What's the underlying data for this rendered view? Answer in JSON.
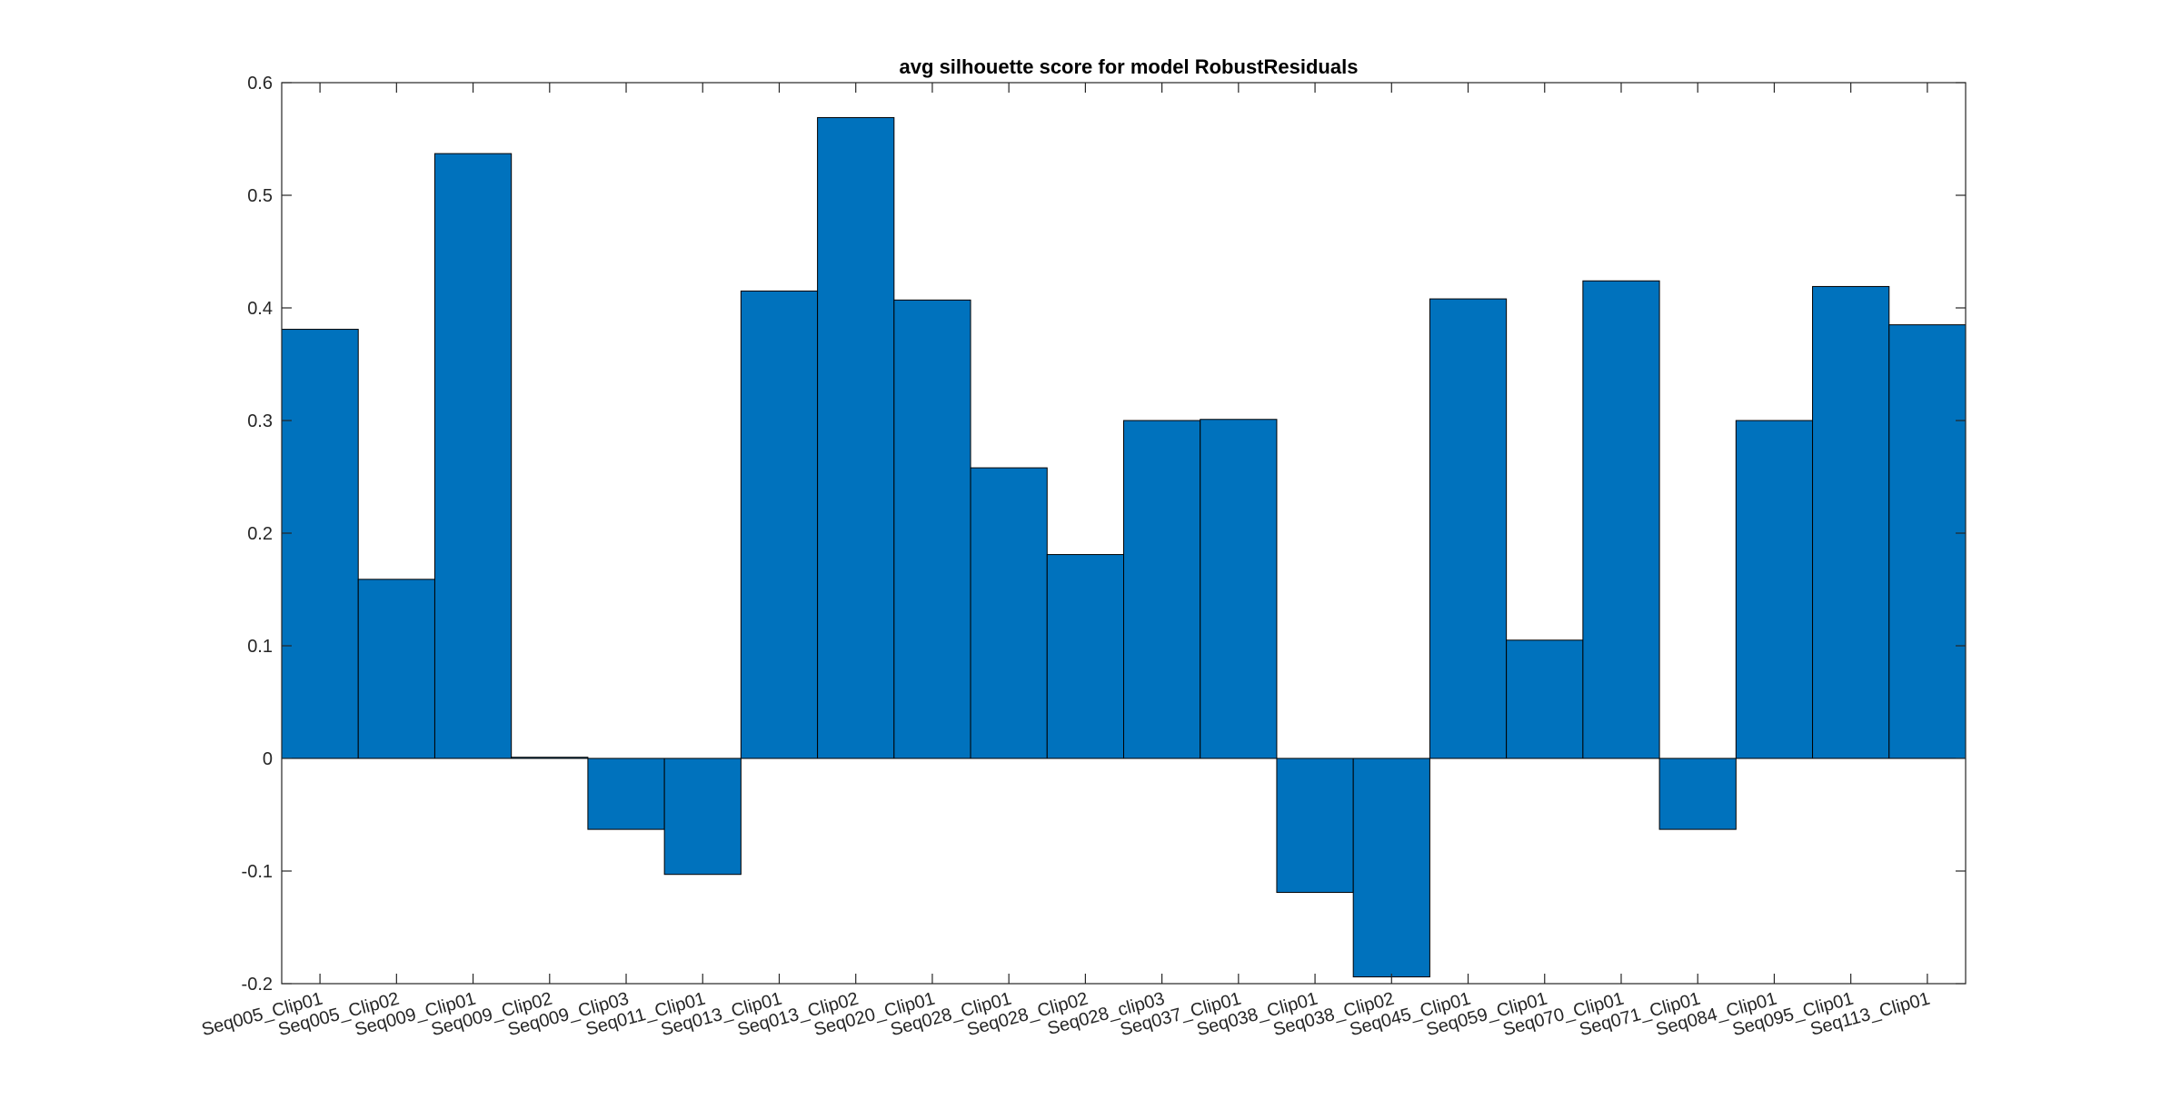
{
  "chart_data": {
    "type": "bar",
    "title": "avg silhouette score for model RobustResiduals",
    "xlabel": "",
    "ylabel": "",
    "ylim": [
      -0.2,
      0.6
    ],
    "yticks": [
      "0.6",
      "0.5",
      "0.4",
      "0.3",
      "0.2",
      "0.1",
      "0",
      "-0.1",
      "-0.2"
    ],
    "ytick_values": [
      0.6,
      0.5,
      0.4,
      0.3,
      0.2,
      0.1,
      0,
      -0.1,
      -0.2
    ],
    "grid": false,
    "bar_color": "#0072BD",
    "categories": [
      "Seq005_Clip01",
      "Seq005_Clip02",
      "Seq009_Clip01",
      "Seq009_Clip02",
      "Seq009_Clip03",
      "Seq011_Clip01",
      "Seq013_Clip01",
      "Seq013_Clip02",
      "Seq020_Clip01",
      "Seq028_Clip01",
      "Seq028_Clip02",
      "Seq028_clip03",
      "Seq037_Clip01",
      "Seq038_Clip01",
      "Seq038_Clip02",
      "Seq045_Clip01",
      "Seq059_Clip01",
      "Seq070_Clip01",
      "Seq071_Clip01",
      "Seq084_Clip01",
      "Seq095_Clip01",
      "Seq113_Clip01"
    ],
    "values": [
      0.381,
      0.159,
      0.537,
      0.001,
      -0.063,
      -0.103,
      0.415,
      0.569,
      0.407,
      0.258,
      0.181,
      0.3,
      0.301,
      -0.119,
      -0.194,
      0.408,
      0.105,
      0.424,
      -0.063,
      0.3,
      0.419,
      0.385
    ]
  }
}
